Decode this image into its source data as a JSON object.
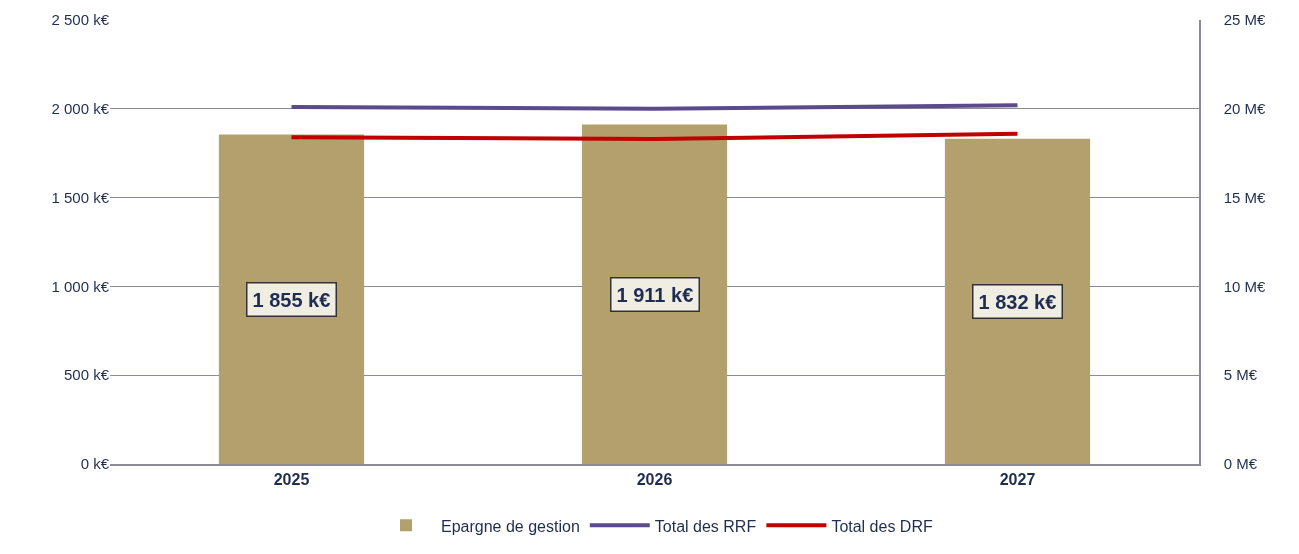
{
  "chart_data": {
    "type": "bar",
    "categories": [
      "2025",
      "2026",
      "2027"
    ],
    "series": [
      {
        "name": "Epargne de gestion",
        "color": "#b4a06d",
        "values": [
          1855,
          1911,
          1832
        ],
        "value_labels": [
          "1 855 k€",
          "1 911 k€",
          "1 832 k€"
        ]
      },
      {
        "name": "Total des RRF",
        "type": "line",
        "axis": "y2",
        "color": "#5b4a8c",
        "values": [
          20.1,
          20.0,
          20.2
        ]
      },
      {
        "name": "Total des DRF",
        "type": "line",
        "axis": "y2",
        "color": "#c00000",
        "values": [
          18.4,
          18.3,
          18.6
        ]
      }
    ],
    "ylim": [
      0,
      2500
    ],
    "yticks": [
      {
        "value": 0,
        "label": "0 k€"
      },
      {
        "value": 500,
        "label": "500 k€"
      },
      {
        "value": 1000,
        "label": "1 000 k€"
      },
      {
        "value": 1500,
        "label": "1 500 k€"
      },
      {
        "value": 2000,
        "label": "2 000 k€"
      },
      {
        "value": 2500,
        "label": "2 500 k€"
      }
    ],
    "y2lim": [
      0,
      25
    ],
    "y2ticks": [
      {
        "value": 0,
        "label": "0 M€"
      },
      {
        "value": 5,
        "label": "5 M€"
      },
      {
        "value": 10,
        "label": "10 M€"
      },
      {
        "value": 15,
        "label": "15 M€"
      },
      {
        "value": 20,
        "label": "20 M€"
      },
      {
        "value": 25,
        "label": "25 M€"
      }
    ],
    "grid": "y",
    "legend": "bottom",
    "marker": "none",
    "line_style": "solid"
  }
}
